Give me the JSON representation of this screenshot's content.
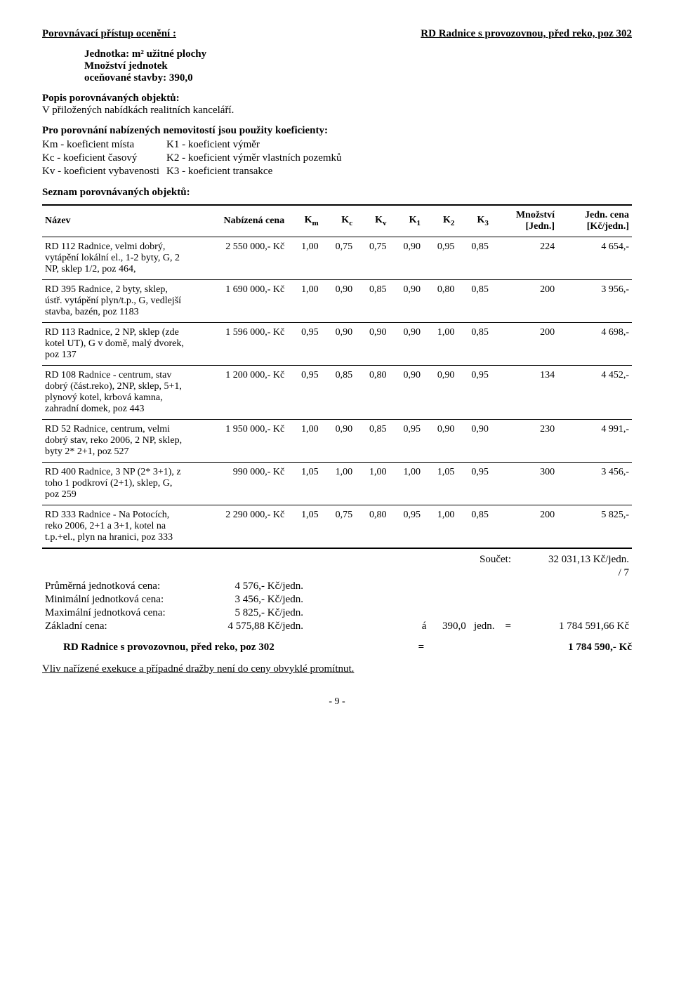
{
  "header": {
    "left_label": "Porovnávací přístup ocenění :",
    "right_title": "RD Radnice s provozovnou, před reko, poz 302",
    "jednotka_line": "Jednotka: m² užitné plochy",
    "mnozstvi_line1": "Množství jednotek",
    "mnozstvi_line2": "oceňované stavby: 390,0"
  },
  "popis": {
    "heading": "Popis porovnávaných objektů:",
    "text": "V přiložených nabídkách realitních kanceláří."
  },
  "koef_intro": "Pro porovnání nabízených nemovitostí jsou použity koeficienty:",
  "koef_rows": [
    [
      "Km - koeficient místa",
      "K1 - koeficient výměr"
    ],
    [
      "Kc - koeficient časový",
      "K2 - koeficient výměr vlastních pozemků"
    ],
    [
      "Kv - koeficient vybavenosti",
      "K3 - koeficient transakce"
    ]
  ],
  "seznam_heading": "Seznam porovnávaných objektů:",
  "table": {
    "headers": {
      "name": "Název",
      "price": "Nabízená cena",
      "km": "K",
      "km_sub": "m",
      "kc": "K",
      "kc_sub": "c",
      "kv": "K",
      "kv_sub": "v",
      "k1": "K",
      "k1_sub": "1",
      "k2": "K",
      "k2_sub": "2",
      "k3": "K",
      "k3_sub": "3",
      "qty_l1": "Množství",
      "qty_l2": "[Jedn.]",
      "unit_l1": "Jedn. cena",
      "unit_l2": "[Kč/jedn.]"
    },
    "rows": [
      {
        "name": "RD 112 Radnice, velmi dobrý, vytápění lokální el., 1-2 byty, G, 2 NP, sklep 1/2, poz 464,",
        "price": "2 550 000,- Kč",
        "km": "1,00",
        "kc": "0,75",
        "kv": "0,75",
        "k1": "0,90",
        "k2": "0,95",
        "k3": "0,85",
        "qty": "224",
        "unit": "4 654,-"
      },
      {
        "name": "RD 395 Radnice, 2 byty, sklep, ústř. vytápění plyn/t.p., G, vedlejší stavba, bazén, poz 1183",
        "price": "1 690 000,- Kč",
        "km": "1,00",
        "kc": "0,90",
        "kv": "0,85",
        "k1": "0,90",
        "k2": "0,80",
        "k3": "0,85",
        "qty": "200",
        "unit": "3 956,-"
      },
      {
        "name": "RD 113 Radnice, 2 NP, sklep (zde kotel UT), G v domě, malý dvorek, poz 137",
        "price": "1 596 000,- Kč",
        "km": "0,95",
        "kc": "0,90",
        "kv": "0,90",
        "k1": "0,90",
        "k2": "1,00",
        "k3": "0,85",
        "qty": "200",
        "unit": "4 698,-"
      },
      {
        "name": "RD 108 Radnice - centrum, stav dobrý (část.reko), 2NP, sklep, 5+1, plynový kotel, krbová kamna, zahradní domek, poz 443",
        "price": "1 200 000,- Kč",
        "km": "0,95",
        "kc": "0,85",
        "kv": "0,80",
        "k1": "0,90",
        "k2": "0,90",
        "k3": "0,95",
        "qty": "134",
        "unit": "4 452,-"
      },
      {
        "name": "RD 52 Radnice, centrum, velmi dobrý stav, reko 2006, 2 NP, sklep, byty 2* 2+1, poz 527",
        "price": "1 950 000,- Kč",
        "km": "1,00",
        "kc": "0,90",
        "kv": "0,85",
        "k1": "0,95",
        "k2": "0,90",
        "k3": "0,90",
        "qty": "230",
        "unit": "4 991,-"
      },
      {
        "name": "RD 400 Radnice, 3 NP (2* 3+1), z toho 1 podkroví (2+1), sklep, G, poz 259",
        "price": "990 000,- Kč",
        "km": "1,05",
        "kc": "1,00",
        "kv": "1,00",
        "k1": "1,00",
        "k2": "1,05",
        "k3": "0,95",
        "qty": "300",
        "unit": "3 456,-"
      },
      {
        "name": "RD 333 Radnice - Na Potocích, reko 2006, 2+1 a 3+1, kotel na t.p.+el., plyn na hranici, poz 333",
        "price": "2 290 000,- Kč",
        "km": "1,05",
        "kc": "0,75",
        "kv": "0,80",
        "k1": "0,95",
        "k2": "1,00",
        "k3": "0,85",
        "qty": "200",
        "unit": "5 825,-"
      }
    ]
  },
  "sums": {
    "soucet_label": "Součet:",
    "soucet_val": "32 031,13 Kč/jedn.",
    "div": "/ 7",
    "avg_label": "Průměrná jednotková cena:",
    "avg_val": "4 576,- Kč/jedn.",
    "min_label": "Minimální jednotková cena:",
    "min_val": "3 456,- Kč/jedn.",
    "max_label": "Maximální jednotková cena:",
    "max_val": "5 825,- Kč/jedn.",
    "base_label": "Základní cena:",
    "base_val": "4 575,88 Kč/jedn.",
    "base_a": "á",
    "base_qty": "390,0",
    "base_unit": "jedn.",
    "base_eq": "=",
    "base_total": "1 784 591,66 Kč"
  },
  "result": {
    "line_left": "RD Radnice s provozovnou, před reko, poz 302",
    "eq": "=",
    "line_right": "1 784 590,- Kč",
    "note": "Vliv nařízené exekuce a případné dražby není do ceny obvyklé promítnut."
  },
  "page": "- 9 -"
}
